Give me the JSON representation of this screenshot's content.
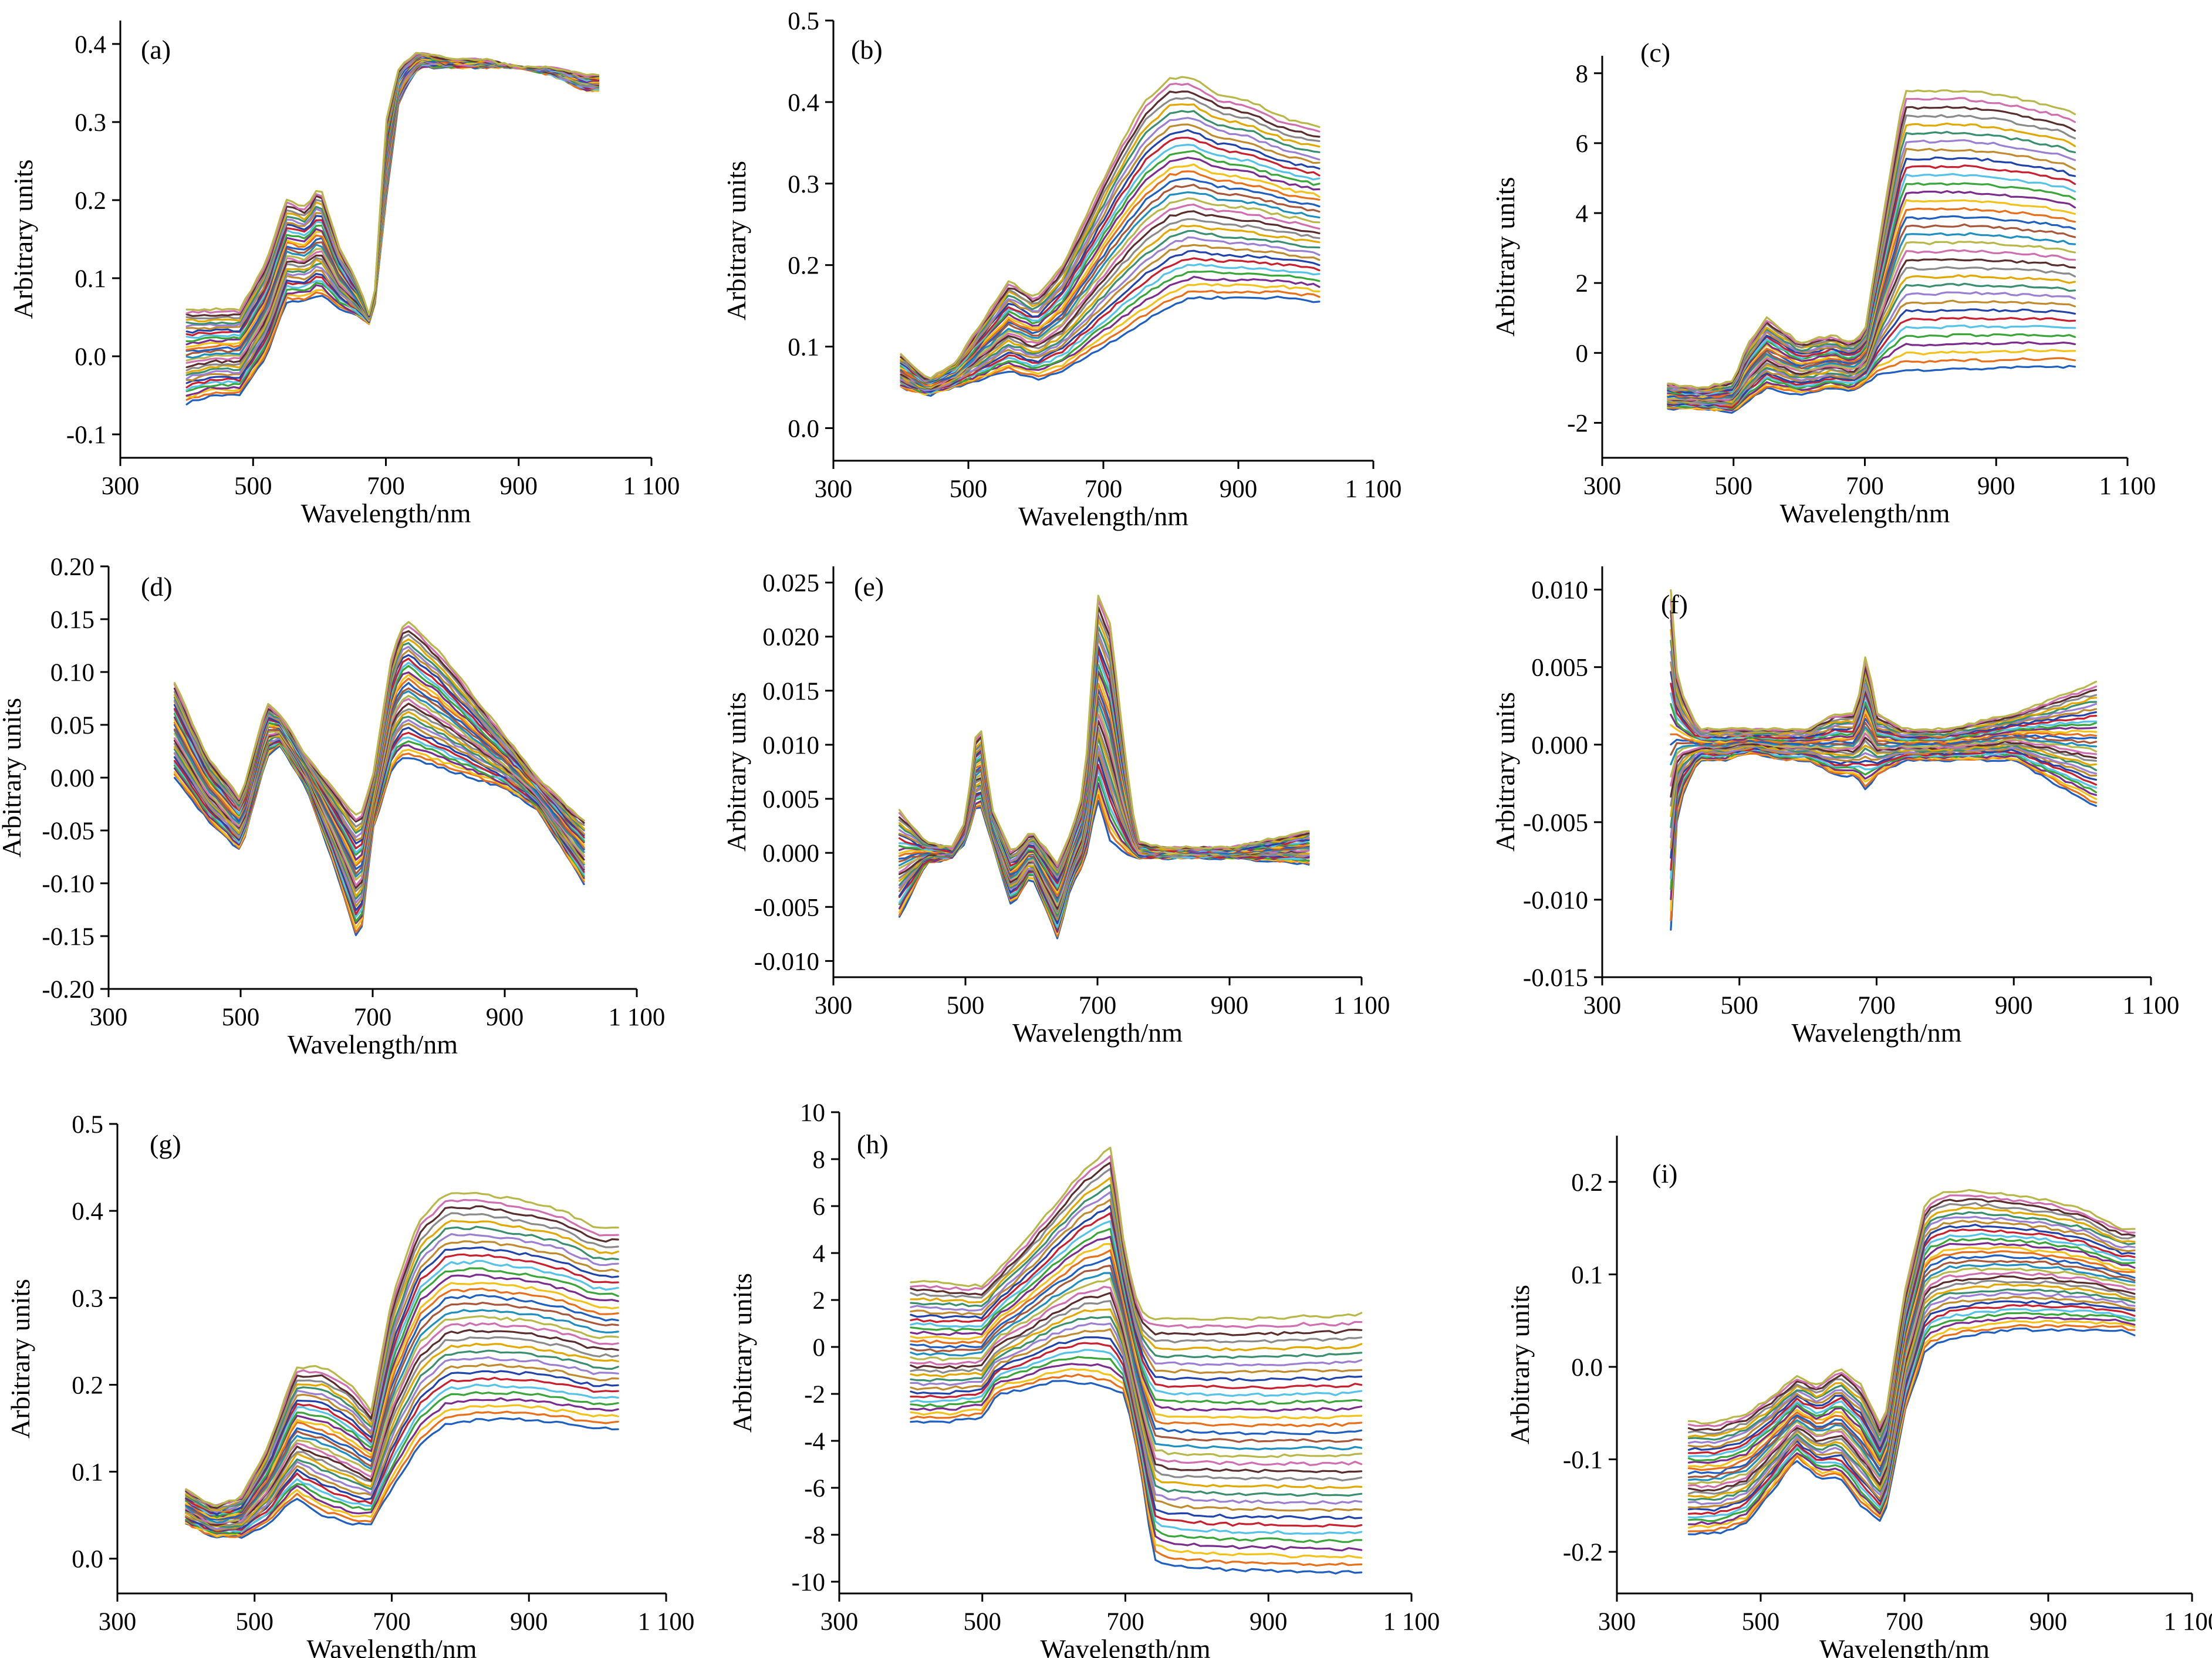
{
  "figure": {
    "ylabel": "Arbitrary units",
    "xlabel": "Wavelength/nm"
  },
  "palette": [
    "#1f5fbf",
    "#e8701a",
    "#f2c21a",
    "#7a2d8c",
    "#3aa63a",
    "#55c2e8",
    "#c8202f",
    "#2244aa",
    "#c08a2e",
    "#9b7fd1",
    "#3a8f6f",
    "#e0a800",
    "#8a8a8a",
    "#5b2e2e",
    "#d06fb0",
    "#b8b84a",
    "#1f8fbf",
    "#a9573a"
  ],
  "chart_data": [
    {
      "panel": "(a)",
      "type": "line",
      "title": "",
      "xlabel": "Wavelength/nm",
      "ylabel": "Arbitrary units",
      "xlim": [
        300,
        1100
      ],
      "ylim": [
        -0.13,
        0.43
      ],
      "xticks": [
        300,
        500,
        700,
        900,
        1100
      ],
      "xtick_labels": [
        "300",
        "500",
        "700",
        "900",
        "1 100"
      ],
      "yticks": [
        -0.1,
        0,
        0.1,
        0.2,
        0.3,
        0.4
      ],
      "ytick_labels": [
        "-0.1",
        "0.0",
        "0.1",
        "0.2",
        "0.3",
        "0.4"
      ],
      "x": [
        400,
        440,
        480,
        520,
        550,
        580,
        600,
        630,
        660,
        680,
        700,
        720,
        750,
        800,
        850,
        900,
        950,
        1000,
        1020
      ],
      "series_low": [
        -0.06,
        -0.05,
        -0.05,
        0.0,
        0.07,
        0.07,
        0.08,
        0.06,
        0.05,
        0.04,
        0.2,
        0.33,
        0.37,
        0.37,
        0.37,
        0.37,
        0.36,
        0.34,
        0.34
      ],
      "series_high": [
        0.06,
        0.06,
        0.06,
        0.12,
        0.2,
        0.19,
        0.22,
        0.14,
        0.09,
        0.04,
        0.3,
        0.37,
        0.39,
        0.38,
        0.38,
        0.37,
        0.37,
        0.36,
        0.36
      ],
      "series_count": 34
    },
    {
      "panel": "(b)",
      "type": "line",
      "title": "",
      "xlabel": "Wavelength/nm",
      "ylabel": "Arbitrary units",
      "xlim": [
        300,
        1100
      ],
      "ylim": [
        -0.04,
        0.5
      ],
      "xticks": [
        300,
        500,
        700,
        900,
        1100
      ],
      "xtick_labels": [
        "300",
        "500",
        "700",
        "900",
        "1 100"
      ],
      "yticks": [
        0,
        0.1,
        0.2,
        0.3,
        0.4,
        0.5
      ],
      "ytick_labels": [
        "0.0",
        "0.1",
        "0.2",
        "0.3",
        "0.4",
        "0.5"
      ],
      "x": [
        400,
        440,
        480,
        520,
        560,
        600,
        640,
        680,
        720,
        760,
        800,
        830,
        870,
        920,
        970,
        1020
      ],
      "series_low": [
        0.05,
        0.04,
        0.05,
        0.06,
        0.07,
        0.06,
        0.07,
        0.09,
        0.11,
        0.13,
        0.15,
        0.16,
        0.16,
        0.16,
        0.16,
        0.155
      ],
      "series_high": [
        0.09,
        0.06,
        0.08,
        0.13,
        0.18,
        0.16,
        0.2,
        0.27,
        0.34,
        0.4,
        0.43,
        0.43,
        0.41,
        0.4,
        0.38,
        0.37
      ],
      "series_count": 34
    },
    {
      "panel": "(c)",
      "type": "line",
      "title": "",
      "xlabel": "Wavelength/nm",
      "ylabel": "Arbitrary units",
      "xlim": [
        300,
        1100
      ],
      "ylim": [
        -3,
        8.5
      ],
      "xticks": [
        300,
        500,
        700,
        900,
        1100
      ],
      "xtick_labels": [
        "300",
        "500",
        "700",
        "900",
        "1 100"
      ],
      "yticks": [
        -2,
        0,
        2,
        4,
        6,
        8
      ],
      "ytick_labels": [
        "-2",
        "0",
        "2",
        "4",
        "6",
        "8"
      ],
      "x": [
        400,
        450,
        500,
        520,
        550,
        600,
        650,
        680,
        700,
        720,
        760,
        800,
        850,
        900,
        950,
        1000,
        1020
      ],
      "series_low": [
        -1.6,
        -1.6,
        -1.7,
        -1.4,
        -1.0,
        -1.2,
        -1.0,
        -1.1,
        -0.9,
        -0.6,
        -0.5,
        -0.5,
        -0.45,
        -0.45,
        -0.4,
        -0.4,
        -0.4
      ],
      "series_high": [
        -0.9,
        -1.0,
        -0.8,
        0.2,
        1.0,
        0.3,
        0.5,
        0.3,
        0.6,
        3.0,
        7.5,
        7.5,
        7.5,
        7.4,
        7.2,
        7.0,
        6.8
      ],
      "series_count": 34
    },
    {
      "panel": "(d)",
      "type": "line",
      "title": "",
      "xlabel": "Wavelength/nm",
      "ylabel": "Arbitrary units",
      "xlim": [
        300,
        1100
      ],
      "ylim": [
        -0.2,
        0.2
      ],
      "xticks": [
        300,
        500,
        700,
        900,
        1100
      ],
      "xtick_labels": [
        "300",
        "500",
        "700",
        "900",
        "1 100"
      ],
      "yticks": [
        -0.2,
        -0.15,
        -0.1,
        -0.05,
        0,
        0.05,
        0.1,
        0.15,
        0.2
      ],
      "ytick_labels": [
        "-0.20",
        "-0.15",
        "-0.10",
        "-0.05",
        "0.00",
        "0.05",
        "0.10",
        "0.15",
        "0.20"
      ],
      "x": [
        400,
        450,
        500,
        540,
        560,
        600,
        640,
        680,
        700,
        730,
        750,
        800,
        850,
        900,
        950,
        1000,
        1020
      ],
      "series_low": [
        0.0,
        -0.04,
        -0.07,
        0.02,
        0.03,
        -0.01,
        -0.08,
        -0.16,
        -0.05,
        0.01,
        0.02,
        0.01,
        0.0,
        -0.01,
        -0.03,
        -0.08,
        -0.1
      ],
      "series_high": [
        0.09,
        0.02,
        -0.02,
        0.07,
        0.06,
        0.02,
        -0.01,
        -0.04,
        0.0,
        0.12,
        0.15,
        0.12,
        0.08,
        0.04,
        0.0,
        -0.03,
        -0.04
      ],
      "series_count": 34
    },
    {
      "panel": "(e)",
      "type": "line",
      "title": "",
      "xlabel": "Wavelength/nm",
      "ylabel": "Arbitrary units",
      "xlim": [
        300,
        1100
      ],
      "ylim": [
        -0.0115,
        0.0265
      ],
      "xticks": [
        300,
        500,
        700,
        900,
        1100
      ],
      "xtick_labels": [
        "300",
        "500",
        "700",
        "900",
        "1 100"
      ],
      "yticks": [
        -0.01,
        -0.005,
        0,
        0.005,
        0.01,
        0.015,
        0.02,
        0.025
      ],
      "ytick_labels": [
        "-0.010",
        "-0.005",
        "0.000",
        "0.005",
        "0.010",
        "0.015",
        "0.020",
        "0.025"
      ],
      "x": [
        400,
        440,
        480,
        500,
        520,
        540,
        570,
        600,
        640,
        660,
        680,
        700,
        720,
        740,
        760,
        800,
        900,
        1020
      ],
      "series_low": [
        -0.006,
        -0.001,
        -0.0005,
        0.001,
        0.005,
        0.001,
        -0.005,
        -0.002,
        -0.008,
        -0.003,
        -0.001,
        0.005,
        0.001,
        0.0,
        -0.0005,
        -0.0005,
        -0.0005,
        -0.001
      ],
      "series_high": [
        0.004,
        0.001,
        0.0005,
        0.003,
        0.013,
        0.004,
        0.0,
        0.002,
        -0.001,
        0.002,
        0.006,
        0.024,
        0.021,
        0.01,
        0.001,
        0.0005,
        0.0005,
        0.002
      ],
      "series_count": 34
    },
    {
      "panel": "(f)",
      "type": "line",
      "title": "",
      "xlabel": "Wavelength/nm",
      "ylabel": "Arbitrary units",
      "xlim": [
        300,
        1100
      ],
      "ylim": [
        -0.015,
        0.0115
      ],
      "xticks": [
        300,
        500,
        700,
        900,
        1100
      ],
      "xtick_labels": [
        "300",
        "500",
        "700",
        "900",
        "1 100"
      ],
      "yticks": [
        -0.015,
        -0.01,
        -0.005,
        0,
        0.005,
        0.01
      ],
      "ytick_labels": [
        "-0.015",
        "-0.010",
        "-0.005",
        "0.000",
        "0.005",
        "0.010"
      ],
      "x": [
        400,
        410,
        440,
        480,
        520,
        560,
        600,
        640,
        670,
        685,
        700,
        740,
        800,
        900,
        1020
      ],
      "series_low": [
        -0.012,
        -0.004,
        -0.001,
        -0.001,
        -0.0005,
        -0.001,
        -0.001,
        -0.002,
        -0.002,
        -0.003,
        -0.002,
        -0.001,
        -0.001,
        -0.001,
        -0.004
      ],
      "series_high": [
        0.01,
        0.004,
        0.001,
        0.001,
        0.001,
        0.001,
        0.001,
        0.002,
        0.002,
        0.006,
        0.002,
        0.001,
        0.001,
        0.002,
        0.004
      ],
      "series_count": 34
    },
    {
      "panel": "(g)",
      "type": "line",
      "title": "",
      "xlabel": "Wavelength/nm",
      "ylabel": "Arbitrary units",
      "xlim": [
        300,
        1100
      ],
      "ylim": [
        -0.04,
        0.5
      ],
      "xticks": [
        300,
        500,
        700,
        900,
        1100
      ],
      "xtick_labels": [
        "300",
        "500",
        "700",
        "900",
        "1 100"
      ],
      "yticks": [
        0,
        0.1,
        0.2,
        0.3,
        0.4,
        0.5
      ],
      "ytick_labels": [
        "0.0",
        "0.1",
        "0.2",
        "0.3",
        "0.4",
        "0.5"
      ],
      "x": [
        400,
        440,
        480,
        520,
        560,
        600,
        640,
        670,
        700,
        740,
        780,
        830,
        900,
        950,
        1000,
        1030
      ],
      "series_low": [
        0.04,
        0.025,
        0.025,
        0.04,
        0.07,
        0.05,
        0.04,
        0.04,
        0.08,
        0.13,
        0.155,
        0.16,
        0.16,
        0.155,
        0.15,
        0.15
      ],
      "series_high": [
        0.08,
        0.06,
        0.07,
        0.13,
        0.22,
        0.22,
        0.2,
        0.17,
        0.3,
        0.39,
        0.42,
        0.42,
        0.41,
        0.4,
        0.38,
        0.38
      ],
      "series_count": 34
    },
    {
      "panel": "(h)",
      "type": "line",
      "title": "",
      "xlabel": "Wavelength/nm",
      "ylabel": "Arbitrary units",
      "xlim": [
        300,
        1100
      ],
      "ylim": [
        -10.5,
        10
      ],
      "xticks": [
        300,
        500,
        700,
        900,
        1100
      ],
      "xtick_labels": [
        "300",
        "500",
        "700",
        "900",
        "1 100"
      ],
      "yticks": [
        -10,
        -8,
        -6,
        -4,
        -2,
        0,
        2,
        4,
        6,
        8,
        10
      ],
      "ytick_labels": [
        "-10",
        "-8",
        "-6",
        "-4",
        "-2",
        "0",
        "2",
        "4",
        "6",
        "8",
        "10"
      ],
      "x": [
        400,
        450,
        500,
        520,
        560,
        600,
        640,
        680,
        700,
        720,
        740,
        760,
        800,
        850,
        900,
        950,
        1000,
        1030
      ],
      "series_low": [
        -3.2,
        -3.2,
        -3.0,
        -2.0,
        -1.8,
        -1.5,
        -1.5,
        -1.8,
        -2.0,
        -5.0,
        -9.0,
        -9.3,
        -9.4,
        -9.5,
        -9.5,
        -9.6,
        -9.6,
        -9.6
      ],
      "series_high": [
        2.8,
        2.7,
        2.6,
        3.2,
        4.5,
        6.0,
        7.5,
        8.5,
        4.0,
        1.5,
        1.2,
        1.2,
        1.2,
        1.2,
        1.2,
        1.3,
        1.3,
        1.4
      ],
      "series_count": 34
    },
    {
      "panel": "(i)",
      "type": "line",
      "title": "",
      "xlabel": "Wavelength/nm",
      "ylabel": "Arbitrary units",
      "xlim": [
        300,
        1100
      ],
      "ylim": [
        -0.245,
        0.25
      ],
      "xticks": [
        300,
        500,
        700,
        900,
        1100
      ],
      "xtick_labels": [
        "300",
        "500",
        "700",
        "900",
        "1 100"
      ],
      "yticks": [
        -0.2,
        -0.1,
        0,
        0.1,
        0.2
      ],
      "ytick_labels": [
        "-0.2",
        "-0.1",
        "0.0",
        "0.1",
        "0.2"
      ],
      "x": [
        400,
        440,
        480,
        520,
        550,
        580,
        610,
        640,
        670,
        700,
        730,
        760,
        800,
        850,
        900,
        950,
        1000,
        1020
      ],
      "series_low": [
        -0.18,
        -0.18,
        -0.17,
        -0.13,
        -0.1,
        -0.12,
        -0.12,
        -0.15,
        -0.17,
        -0.05,
        0.02,
        0.03,
        0.035,
        0.04,
        0.04,
        0.04,
        0.04,
        0.035
      ],
      "series_high": [
        -0.06,
        -0.06,
        -0.05,
        -0.03,
        -0.01,
        -0.02,
        0.0,
        -0.02,
        -0.07,
        0.08,
        0.18,
        0.19,
        0.19,
        0.185,
        0.18,
        0.17,
        0.15,
        0.15
      ],
      "series_count": 34
    }
  ]
}
